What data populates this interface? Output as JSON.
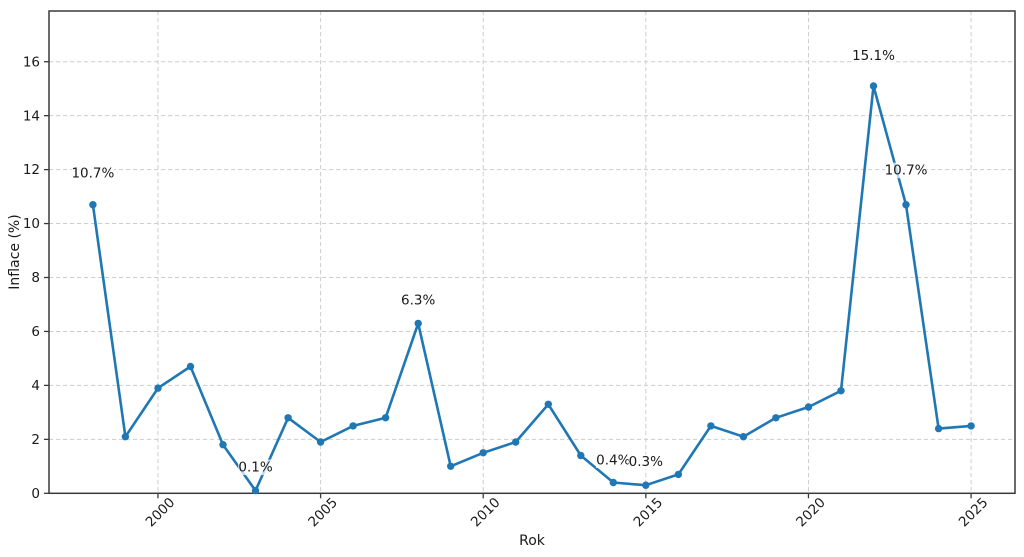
{
  "chart_data": {
    "type": "line",
    "title": "",
    "xlabel": "Rok",
    "ylabel": "Inflace (%)",
    "series": [
      {
        "name": "Inflace",
        "x": [
          1998,
          1999,
          2000,
          2001,
          2002,
          2003,
          2004,
          2005,
          2006,
          2007,
          2008,
          2009,
          2010,
          2011,
          2012,
          2013,
          2014,
          2015,
          2016,
          2017,
          2018,
          2019,
          2020,
          2021,
          2022,
          2023,
          2024,
          2025
        ],
        "values": [
          10.7,
          2.1,
          3.9,
          4.7,
          1.8,
          0.1,
          2.8,
          1.9,
          2.5,
          2.8,
          6.3,
          1.0,
          1.5,
          1.9,
          3.3,
          1.4,
          0.4,
          0.3,
          0.7,
          2.5,
          2.1,
          2.8,
          3.2,
          3.8,
          15.1,
          10.7,
          2.4,
          2.5
        ]
      }
    ],
    "xticks": [
      "2000",
      "2005",
      "2010",
      "2015",
      "2020",
      "2025"
    ],
    "yticks": [
      "0",
      "2",
      "4",
      "6",
      "8",
      "10",
      "12",
      "14",
      "16"
    ],
    "xlim": [
      1996.65,
      2026.35
    ],
    "ylim": [
      0,
      17.88
    ],
    "grid": true,
    "grid_style": "dashed",
    "legend_position": "none",
    "line_color": "#1f77b4",
    "marker": "o",
    "annotations": [
      {
        "x": 1998,
        "y": 10.7,
        "label": "10.7%"
      },
      {
        "x": 2003,
        "y": 0.1,
        "label": "0.1%"
      },
      {
        "x": 2008,
        "y": 6.3,
        "label": "6.3%"
      },
      {
        "x": 2014,
        "y": 0.4,
        "label": "0.4%"
      },
      {
        "x": 2015,
        "y": 0.3,
        "label": "0.3%"
      },
      {
        "x": 2022,
        "y": 15.1,
        "label": "15.1%"
      },
      {
        "x": 2023,
        "y": 10.7,
        "label": "10.7%"
      }
    ],
    "colors": {
      "grid": "#cdcdcd",
      "spine": "#3a3a3a",
      "tick_label": "#1a1a1a",
      "annotation_text": "#1a1a1a",
      "background": "#ffffff"
    }
  }
}
